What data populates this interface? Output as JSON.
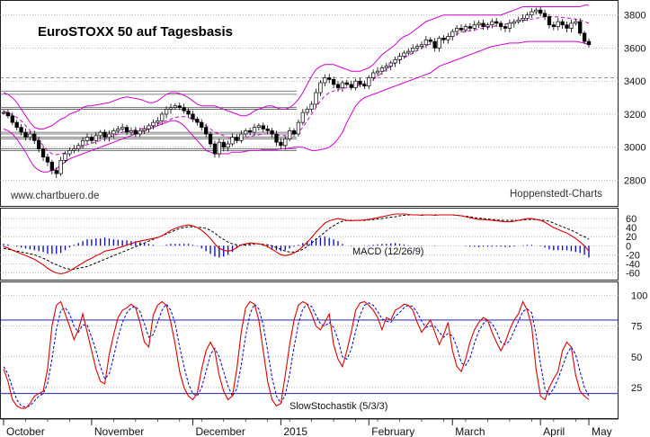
{
  "chart_data": [
    {
      "type": "candlestick",
      "title": "EuroSTOXX 50 auf Tagesbasis",
      "watermark_left": "www.chartbuero.de",
      "watermark_right": "Hoppenstedt-Charts",
      "ylim": [
        2650,
        3880
      ],
      "yticks": [
        2800,
        3000,
        3200,
        3400,
        3600,
        3800
      ],
      "close_series": [
        3210,
        3190,
        3150,
        3120,
        3090,
        3060,
        3080,
        3040,
        2990,
        2940,
        2910,
        2860,
        2840,
        2920,
        2960,
        2980,
        2990,
        3010,
        3040,
        3060,
        3040,
        3070,
        3090,
        3060,
        3080,
        3100,
        3110,
        3120,
        3090,
        3100,
        3080,
        3100,
        3110,
        3130,
        3150,
        3160,
        3200,
        3230,
        3240,
        3250,
        3240,
        3220,
        3200,
        3170,
        3150,
        3120,
        3080,
        3020,
        2960,
        3030,
        3000,
        3020,
        3060,
        3040,
        3080,
        3100,
        3090,
        3120,
        3130,
        3110,
        3100,
        3080,
        3030,
        3010,
        3050,
        3100,
        3080,
        3150,
        3210,
        3230,
        3260,
        3330,
        3390,
        3420,
        3410,
        3380,
        3360,
        3390,
        3380,
        3360,
        3400,
        3380,
        3370,
        3420,
        3450,
        3460,
        3480,
        3490,
        3510,
        3530,
        3550,
        3570,
        3580,
        3600,
        3610,
        3620,
        3650,
        3640,
        3600,
        3660,
        3650,
        3670,
        3700,
        3720,
        3710,
        3730,
        3720,
        3740,
        3750,
        3730,
        3740,
        3760,
        3750,
        3730,
        3720,
        3750,
        3760,
        3770,
        3780,
        3800,
        3820,
        3830,
        3810,
        3790,
        3740,
        3730,
        3760,
        3740,
        3720,
        3750,
        3760,
        3690,
        3640,
        3620
      ],
      "bb_upper": [
        3330,
        3320,
        3300,
        3270,
        3230,
        3190,
        3150,
        3120,
        3110,
        3110,
        3120,
        3130,
        3150,
        3170,
        3180,
        3200,
        3210,
        3220,
        3240,
        3250,
        3250,
        3255,
        3260,
        3265,
        3270,
        3280,
        3290,
        3300,
        3305,
        3300,
        3295,
        3290,
        3280,
        3270,
        3270,
        3280,
        3300,
        3320,
        3330,
        3330,
        3325,
        3315,
        3300,
        3280,
        3260,
        3250,
        3250,
        3250,
        3250,
        3240,
        3230,
        3220,
        3210,
        3200,
        3190,
        3190,
        3200,
        3220,
        3230,
        3240,
        3250,
        3250,
        3240,
        3230,
        3230,
        3240,
        3260,
        3290,
        3330,
        3380,
        3430,
        3470,
        3490,
        3500,
        3500,
        3500,
        3490,
        3480,
        3470,
        3460,
        3460,
        3460,
        3470,
        3480,
        3500,
        3530,
        3560,
        3580,
        3600,
        3620,
        3650,
        3670,
        3680,
        3700,
        3720,
        3740,
        3760,
        3770,
        3780,
        3790,
        3800,
        3800,
        3800,
        3800,
        3800,
        3800,
        3800,
        3800,
        3800,
        3800,
        3800,
        3800,
        3800,
        3800,
        3810,
        3820,
        3830,
        3840,
        3850,
        3850,
        3850,
        3850,
        3850,
        3850,
        3850,
        3850,
        3850,
        3850,
        3850,
        3850,
        3850,
        3850,
        3860,
        3860
      ],
      "bb_lower": [
        3110,
        3100,
        3080,
        3050,
        3010,
        2970,
        2920,
        2880,
        2860,
        2850,
        2850,
        2860,
        2870,
        2890,
        2910,
        2930,
        2940,
        2950,
        2960,
        2970,
        2980,
        2990,
        3000,
        3010,
        3020,
        3030,
        3040,
        3050,
        3060,
        3070,
        3080,
        3090,
        3100,
        3110,
        3120,
        3130,
        3140,
        3150,
        3160,
        3160,
        3150,
        3130,
        3100,
        3070,
        3040,
        3010,
        2980,
        2970,
        2960,
        2960,
        2960,
        2960,
        2970,
        2970,
        2970,
        2975,
        2980,
        2980,
        2980,
        2985,
        2985,
        2985,
        2985,
        2990,
        2990,
        2995,
        3000,
        3000,
        3000,
        2990,
        2980,
        2980,
        2985,
        2990,
        3000,
        3020,
        3050,
        3090,
        3150,
        3200,
        3250,
        3280,
        3300,
        3310,
        3320,
        3330,
        3340,
        3350,
        3360,
        3370,
        3380,
        3390,
        3400,
        3410,
        3420,
        3430,
        3440,
        3450,
        3470,
        3490,
        3500,
        3510,
        3520,
        3530,
        3540,
        3550,
        3560,
        3570,
        3580,
        3590,
        3600,
        3610,
        3615,
        3620,
        3625,
        3630,
        3630,
        3630,
        3635,
        3640,
        3640,
        3640,
        3640,
        3640,
        3640,
        3640,
        3640,
        3640,
        3640,
        3640,
        3640,
        3635,
        3630,
        3620
      ],
      "moving_average": [
        3220,
        3210,
        3195,
        3180,
        3160,
        3130,
        3100,
        3070,
        3040,
        3010,
        2980,
        2960,
        2955,
        2960,
        2965,
        2975,
        2985,
        2995,
        3005,
        3015,
        3025,
        3030,
        3040,
        3050,
        3060,
        3070,
        3080,
        3090,
        3095,
        3100,
        3105,
        3110,
        3115,
        3120,
        3130,
        3140,
        3150,
        3160,
        3170,
        3180,
        3185,
        3185,
        3180,
        3170,
        3160,
        3145,
        3130,
        3110,
        3090,
        3080,
        3070,
        3060,
        3055,
        3050,
        3055,
        3060,
        3065,
        3070,
        3075,
        3080,
        3080,
        3080,
        3075,
        3070,
        3070,
        3075,
        3080,
        3090,
        3120,
        3160,
        3200,
        3240,
        3280,
        3310,
        3330,
        3340,
        3350,
        3355,
        3360,
        3365,
        3370,
        3375,
        3385,
        3395,
        3410,
        3430,
        3450,
        3470,
        3490,
        3510,
        3525,
        3540,
        3555,
        3570,
        3585,
        3600,
        3615,
        3625,
        3635,
        3645,
        3655,
        3665,
        3675,
        3685,
        3695,
        3700,
        3705,
        3710,
        3715,
        3720,
        3725,
        3730,
        3735,
        3740,
        3745,
        3750,
        3755,
        3760,
        3765,
        3770,
        3775,
        3780,
        3785,
        3790,
        3790,
        3790,
        3788,
        3785,
        3782,
        3780,
        3775,
        3770,
        3760,
        3750
      ],
      "horizontal_lines": [
        3340,
        3320,
        3240,
        3230,
        3090,
        3080,
        3060,
        3050,
        2990,
        2980
      ],
      "horizontal_line_dashed": 3420
    },
    {
      "type": "line",
      "title": "MACD (12/26/9)",
      "ylim": [
        -75,
        80
      ],
      "yticks": [
        60,
        40,
        20,
        0,
        -20,
        -40,
        -60
      ],
      "macd": [
        -2,
        -5,
        -10,
        -14,
        -18,
        -22,
        -26,
        -30,
        -36,
        -42,
        -50,
        -56,
        -60,
        -62,
        -60,
        -56,
        -50,
        -44,
        -38,
        -32,
        -28,
        -22,
        -18,
        -12,
        -10,
        -8,
        -5,
        -2,
        2,
        4,
        8,
        10,
        12,
        14,
        16,
        18,
        22,
        28,
        34,
        38,
        42,
        44,
        46,
        44,
        40,
        34,
        26,
        16,
        4,
        -6,
        -10,
        -12,
        -10,
        -4,
        2,
        4,
        6,
        5,
        4,
        2,
        -2,
        -8,
        -14,
        -20,
        -22,
        -20,
        -16,
        -10,
        -2,
        8,
        18,
        30,
        40,
        50,
        55,
        58,
        60,
        58,
        56,
        55,
        56,
        56,
        57,
        58,
        60,
        62,
        64,
        66,
        68,
        70,
        70,
        70,
        69,
        68,
        68,
        67,
        68,
        68,
        67,
        68,
        68,
        68,
        68,
        67,
        66,
        64,
        62,
        60,
        58,
        58,
        57,
        56,
        55,
        54,
        53,
        53,
        54,
        56,
        58,
        60,
        60,
        58,
        56,
        52,
        46,
        40,
        36,
        32,
        28,
        22,
        16,
        8,
        0,
        -12
      ],
      "signal": [
        -6,
        -8,
        -10,
        -12,
        -14,
        -16,
        -18,
        -20,
        -24,
        -28,
        -32,
        -38,
        -42,
        -46,
        -50,
        -52,
        -52,
        -50,
        -48,
        -46,
        -42,
        -38,
        -34,
        -30,
        -26,
        -22,
        -18,
        -14,
        -10,
        -6,
        -2,
        2,
        6,
        10,
        14,
        18,
        22,
        26,
        30,
        34,
        38,
        40,
        42,
        42,
        41,
        40,
        38,
        34,
        28,
        20,
        14,
        8,
        4,
        2,
        1,
        2,
        3,
        4,
        4,
        3,
        2,
        0,
        -4,
        -8,
        -12,
        -14,
        -14,
        -12,
        -8,
        -2,
        6,
        14,
        22,
        30,
        38,
        44,
        50,
        54,
        56,
        56,
        56,
        56,
        56,
        57,
        58,
        59,
        60,
        62,
        63,
        64,
        66,
        67,
        68,
        68,
        68,
        68,
        68,
        68,
        68,
        68,
        68,
        68,
        68,
        67,
        66,
        65,
        64,
        62,
        61,
        60,
        59,
        58,
        57,
        56,
        56,
        56,
        56,
        56,
        57,
        58,
        58,
        58,
        57,
        56,
        54,
        50,
        46,
        42,
        38,
        34,
        30,
        24,
        20,
        14
      ],
      "histogram": [
        4,
        3,
        0,
        -2,
        -4,
        -6,
        -8,
        -10,
        -12,
        -14,
        -18,
        -18,
        -18,
        -16,
        -10,
        -4,
        2,
        6,
        10,
        14,
        14,
        16,
        16,
        18,
        16,
        14,
        13,
        12,
        12,
        10,
        10,
        8,
        6,
        4,
        2,
        0,
        0,
        2,
        4,
        4,
        4,
        4,
        4,
        2,
        -1,
        -6,
        -12,
        -18,
        -24,
        -26,
        -24,
        -20,
        -14,
        -6,
        1,
        2,
        3,
        1,
        0,
        -1,
        -4,
        -8,
        -10,
        -12,
        -10,
        -6,
        -2,
        2,
        6,
        10,
        12,
        16,
        18,
        20,
        17,
        14,
        10,
        4,
        0,
        -1,
        0,
        0,
        1,
        1,
        2,
        3,
        4,
        4,
        5,
        6,
        4,
        3,
        1,
        0,
        0,
        -1,
        0,
        0,
        -1,
        0,
        0,
        0,
        0,
        0,
        0,
        -1,
        -2,
        -2,
        -3,
        -2,
        -2,
        -2,
        -2,
        -2,
        -3,
        -3,
        -2,
        0,
        1,
        2,
        2,
        0,
        -1,
        -4,
        -8,
        -10,
        -10,
        -10,
        -10,
        -12,
        -14,
        -16,
        -20,
        -26
      ]
    },
    {
      "type": "line",
      "title": "SlowStochastik (5/3/3)",
      "ylim": [
        0,
        110
      ],
      "yticks": [
        100,
        75,
        50,
        25
      ],
      "reference_lines": [
        80,
        20
      ],
      "k": [
        40,
        30,
        15,
        10,
        8,
        8,
        12,
        18,
        20,
        22,
        40,
        75,
        92,
        95,
        85,
        75,
        64,
        72,
        85,
        70,
        55,
        40,
        30,
        28,
        52,
        68,
        82,
        88,
        90,
        93,
        90,
        78,
        62,
        58,
        84,
        92,
        95,
        92,
        78,
        60,
        38,
        25,
        18,
        15,
        20,
        40,
        55,
        62,
        55,
        35,
        22,
        15,
        18,
        40,
        70,
        90,
        95,
        93,
        80,
        55,
        30,
        15,
        10,
        12,
        35,
        60,
        80,
        92,
        95,
        93,
        85,
        75,
        72,
        78,
        85,
        60,
        48,
        42,
        55,
        70,
        88,
        94,
        95,
        92,
        88,
        82,
        72,
        82,
        80,
        88,
        90,
        93,
        92,
        88,
        78,
        70,
        75,
        80,
        70,
        60,
        68,
        78,
        55,
        42,
        38,
        48,
        62,
        72,
        78,
        82,
        80,
        70,
        62,
        55,
        62,
        72,
        80,
        85,
        95,
        88,
        75,
        40,
        18,
        15,
        25,
        32,
        38,
        55,
        62,
        58,
        35,
        22,
        18,
        15
      ],
      "d": [
        42,
        36,
        25,
        15,
        10,
        9,
        10,
        14,
        18,
        20,
        28,
        48,
        72,
        88,
        90,
        85,
        75,
        70,
        76,
        76,
        66,
        55,
        42,
        32,
        36,
        50,
        66,
        78,
        86,
        90,
        91,
        87,
        77,
        66,
        68,
        78,
        88,
        93,
        88,
        77,
        58,
        42,
        28,
        20,
        18,
        25,
        38,
        52,
        57,
        50,
        38,
        26,
        18,
        24,
        43,
        67,
        85,
        93,
        89,
        76,
        55,
        33,
        18,
        12,
        19,
        36,
        58,
        77,
        89,
        93,
        91,
        84,
        77,
        75,
        78,
        74,
        64,
        50,
        48,
        56,
        71,
        84,
        92,
        94,
        92,
        87,
        81,
        79,
        78,
        83,
        86,
        90,
        92,
        91,
        86,
        79,
        74,
        75,
        75,
        70,
        66,
        69,
        67,
        58,
        45,
        43,
        49,
        61,
        71,
        77,
        80,
        77,
        71,
        62,
        60,
        63,
        71,
        79,
        87,
        89,
        86,
        68,
        44,
        24,
        19,
        24,
        32,
        42,
        52,
        58,
        52,
        38,
        25,
        18
      ]
    }
  ],
  "x_axis": {
    "months": [
      "October",
      "November",
      "December",
      "2015",
      "February",
      "March",
      "April",
      "May"
    ]
  },
  "colors": {
    "candle": "#000000",
    "bollinger": "#d000d0",
    "average": "#d000d0",
    "macd_line": "#dd0000",
    "signal_line": "#000000",
    "histogram": "#0000cc",
    "stoch_k": "#dd0000",
    "stoch_d": "#0000cc",
    "reference_line": "#0000aa",
    "grid": "#8c8c8c"
  }
}
